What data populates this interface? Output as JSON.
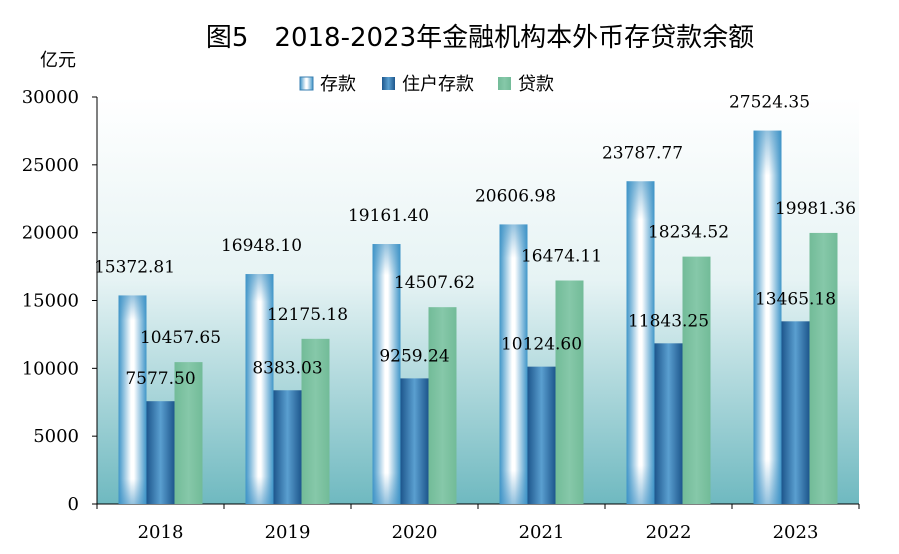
{
  "chart_data": {
    "type": "bar",
    "title": "图5　2018-2023年金融机构本外币存贷款余额",
    "ylabel": "亿元",
    "xlabel": "",
    "ylim": [
      0,
      30000
    ],
    "yticks": [
      0,
      5000,
      10000,
      15000,
      20000,
      25000,
      30000
    ],
    "categories": [
      "2018",
      "2019",
      "2020",
      "2021",
      "2022",
      "2023"
    ],
    "series": [
      {
        "name": "存款",
        "values": [
          15372.81,
          16948.1,
          19161.4,
          20606.98,
          23787.77,
          27524.35
        ],
        "labels": [
          "15372.81",
          "16948.10",
          "19161.40",
          "20606.98",
          "23787.77",
          "27524.35"
        ],
        "color": "#3a8fc4"
      },
      {
        "name": "住户存款",
        "values": [
          7577.5,
          8383.03,
          9259.24,
          10124.6,
          11843.25,
          13465.18
        ],
        "labels": [
          "7577.50",
          "8383.03",
          "9259.24",
          "10124.60",
          "11843.25",
          "13465.18"
        ],
        "color": "#1f5a92"
      },
      {
        "name": "贷款",
        "values": [
          10457.65,
          12175.18,
          14507.62,
          16474.11,
          18234.52,
          19981.36
        ],
        "labels": [
          "10457.65",
          "12175.18",
          "14507.62",
          "16474.11",
          "18234.52",
          "19981.36"
        ],
        "color": "#7cc0a0"
      }
    ],
    "legend_position": "top-center",
    "grid": false
  }
}
